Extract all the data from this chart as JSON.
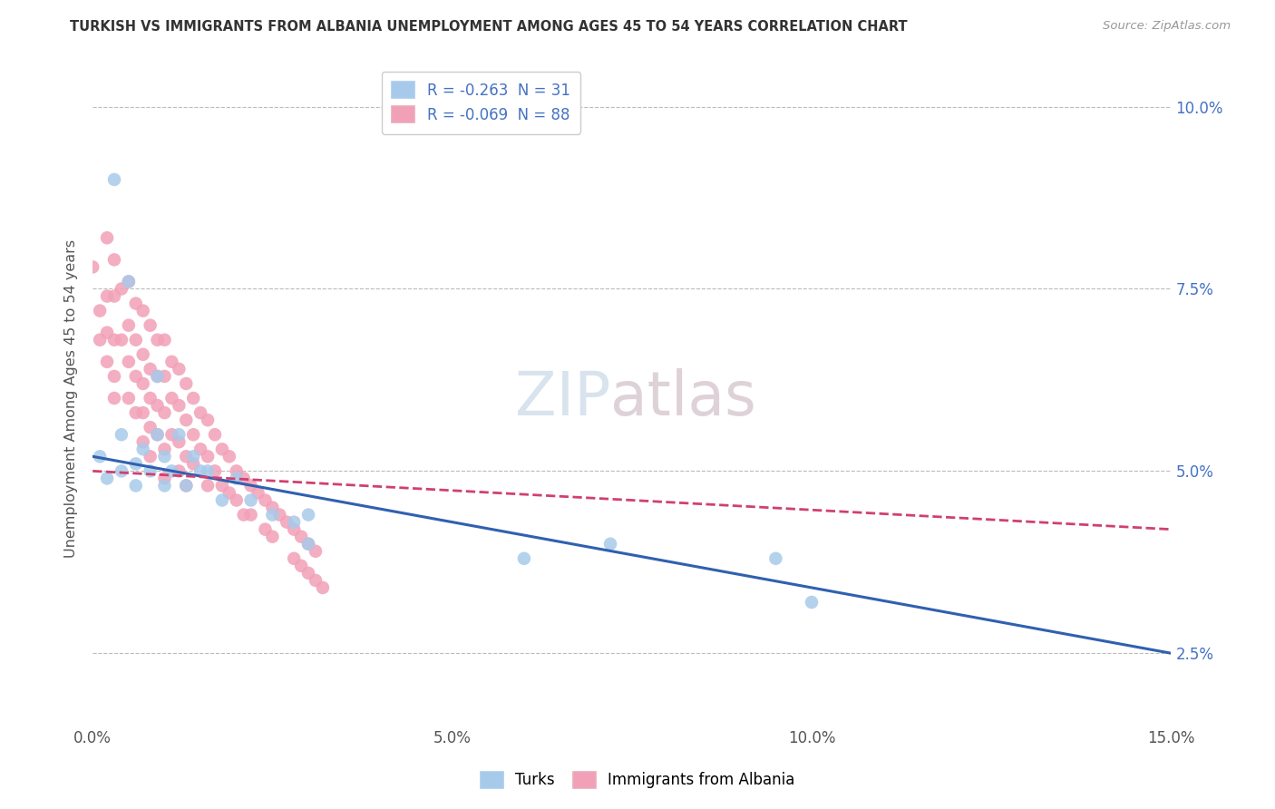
{
  "title": "TURKISH VS IMMIGRANTS FROM ALBANIA UNEMPLOYMENT AMONG AGES 45 TO 54 YEARS CORRELATION CHART",
  "source": "Source: ZipAtlas.com",
  "ylabel": "Unemployment Among Ages 45 to 54 years",
  "xmin": 0.0,
  "xmax": 0.15,
  "ymin": 0.015,
  "ymax": 0.105,
  "legend_blue_label": "R = -0.263  N = 31",
  "legend_pink_label": "R = -0.069  N = 88",
  "legend_bottom_turks": "Turks",
  "legend_bottom_albania": "Immigrants from Albania",
  "blue_color": "#A8CAEA",
  "pink_color": "#F2A0B8",
  "blue_line_color": "#3060B0",
  "pink_line_color": "#D04070",
  "background_color": "#FFFFFF",
  "turks_x": [
    0.001,
    0.002,
    0.003,
    0.004,
    0.004,
    0.005,
    0.006,
    0.006,
    0.007,
    0.008,
    0.009,
    0.009,
    0.01,
    0.01,
    0.011,
    0.012,
    0.013,
    0.014,
    0.015,
    0.016,
    0.018,
    0.02,
    0.022,
    0.025,
    0.028,
    0.03,
    0.03,
    0.06,
    0.072,
    0.095,
    0.1
  ],
  "turks_y": [
    0.052,
    0.049,
    0.09,
    0.055,
    0.05,
    0.076,
    0.051,
    0.048,
    0.053,
    0.05,
    0.063,
    0.055,
    0.052,
    0.048,
    0.05,
    0.055,
    0.048,
    0.052,
    0.05,
    0.05,
    0.046,
    0.049,
    0.046,
    0.044,
    0.043,
    0.044,
    0.04,
    0.038,
    0.04,
    0.038,
    0.032
  ],
  "albania_x": [
    0.0,
    0.001,
    0.001,
    0.002,
    0.002,
    0.002,
    0.002,
    0.003,
    0.003,
    0.003,
    0.003,
    0.003,
    0.004,
    0.004,
    0.005,
    0.005,
    0.005,
    0.005,
    0.006,
    0.006,
    0.006,
    0.006,
    0.007,
    0.007,
    0.007,
    0.007,
    0.007,
    0.008,
    0.008,
    0.008,
    0.008,
    0.008,
    0.009,
    0.009,
    0.009,
    0.009,
    0.01,
    0.01,
    0.01,
    0.01,
    0.01,
    0.011,
    0.011,
    0.011,
    0.012,
    0.012,
    0.012,
    0.012,
    0.013,
    0.013,
    0.013,
    0.013,
    0.014,
    0.014,
    0.014,
    0.015,
    0.015,
    0.016,
    0.016,
    0.016,
    0.017,
    0.017,
    0.018,
    0.018,
    0.019,
    0.019,
    0.02,
    0.02,
    0.021,
    0.021,
    0.022,
    0.022,
    0.023,
    0.024,
    0.024,
    0.025,
    0.025,
    0.026,
    0.027,
    0.028,
    0.028,
    0.029,
    0.029,
    0.03,
    0.03,
    0.031,
    0.031,
    0.032
  ],
  "albania_y": [
    0.078,
    0.072,
    0.068,
    0.082,
    0.074,
    0.069,
    0.065,
    0.079,
    0.074,
    0.068,
    0.063,
    0.06,
    0.075,
    0.068,
    0.076,
    0.07,
    0.065,
    0.06,
    0.073,
    0.068,
    0.063,
    0.058,
    0.072,
    0.066,
    0.062,
    0.058,
    0.054,
    0.07,
    0.064,
    0.06,
    0.056,
    0.052,
    0.068,
    0.063,
    0.059,
    0.055,
    0.068,
    0.063,
    0.058,
    0.053,
    0.049,
    0.065,
    0.06,
    0.055,
    0.064,
    0.059,
    0.054,
    0.05,
    0.062,
    0.057,
    0.052,
    0.048,
    0.06,
    0.055,
    0.051,
    0.058,
    0.053,
    0.057,
    0.052,
    0.048,
    0.055,
    0.05,
    0.053,
    0.048,
    0.052,
    0.047,
    0.05,
    0.046,
    0.049,
    0.044,
    0.048,
    0.044,
    0.047,
    0.046,
    0.042,
    0.045,
    0.041,
    0.044,
    0.043,
    0.042,
    0.038,
    0.041,
    0.037,
    0.04,
    0.036,
    0.039,
    0.035,
    0.034
  ],
  "trend_blue_x0": 0.0,
  "trend_blue_y0": 0.052,
  "trend_blue_x1": 0.15,
  "trend_blue_y1": 0.025,
  "trend_pink_x0": 0.0,
  "trend_pink_y0": 0.05,
  "trend_pink_x1": 0.15,
  "trend_pink_y1": 0.042
}
